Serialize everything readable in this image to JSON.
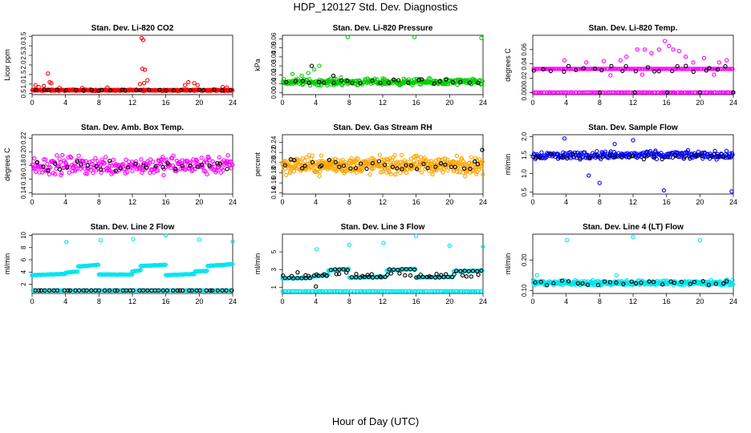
{
  "figure": {
    "title": "HDP_120127  Std. Dev. Diagnostics",
    "xlabel": "Hour of Day (UTC)"
  },
  "chart_data": [
    {
      "type": "scatter",
      "title": "Stan. Dev. Li-820 CO2",
      "ylabel": "Licor ppm",
      "xlim": [
        0,
        24
      ],
      "xticks": [
        "0",
        "4",
        "8",
        "12",
        "16",
        "20",
        "24"
      ],
      "ylim": [
        0.45,
        3.55
      ],
      "yticks": [
        "0.5",
        "1.0",
        "1.5",
        "2.0",
        "2.5",
        "3.0",
        "3.5"
      ],
      "color": "#ff0000",
      "series": [
        {
          "name": "all",
          "color": "#ff0000",
          "base": 0.68,
          "spread": 0.05,
          "n": 300,
          "extra": [
            [
              0.4,
              0.95
            ],
            [
              0.8,
              0.85
            ],
            [
              1.4,
              0.9
            ],
            [
              1.9,
              1.55
            ],
            [
              2.1,
              1.1
            ],
            [
              2.3,
              1.05
            ],
            [
              3.3,
              0.8
            ],
            [
              6.0,
              0.8
            ],
            [
              9.0,
              0.82
            ],
            [
              12.9,
              1.0
            ],
            [
              13.1,
              3.4
            ],
            [
              13.3,
              3.3
            ],
            [
              13.2,
              1.8
            ],
            [
              13.5,
              1.75
            ],
            [
              13.8,
              1.2
            ],
            [
              13.4,
              1.05
            ],
            [
              18.3,
              0.95
            ],
            [
              18.7,
              1.1
            ],
            [
              19.4,
              1.05
            ],
            [
              19.8,
              0.95
            ],
            [
              22.8,
              0.85
            ],
            [
              23.3,
              0.82
            ]
          ]
        },
        {
          "name": "hourly",
          "color": "#000000",
          "base": 0.69,
          "spread": 0.04,
          "n": 26,
          "extra": []
        }
      ]
    },
    {
      "type": "scatter",
      "title": "Stan. Dev. Li-820 Pressure",
      "ylabel": "kPa",
      "xlim": [
        0,
        24
      ],
      "xticks": [
        "0",
        "4",
        "8",
        "12",
        "16",
        "20",
        "24"
      ],
      "ylim": [
        -0.002,
        0.064
      ],
      "yticks": [
        "0.00",
        "0.01",
        "0.02",
        "0.03",
        "0.04",
        "0.05",
        "0.06"
      ],
      "color": "#00cc00",
      "series": [
        {
          "name": "all",
          "color": "#00cc00",
          "base": 0.012,
          "spread": 0.005,
          "n": 300,
          "extra": [
            [
              1.2,
              0.021
            ],
            [
              2.3,
              0.019
            ],
            [
              3.1,
              0.022
            ],
            [
              3.8,
              0.026
            ],
            [
              4.4,
              0.03
            ],
            [
              7.8,
              0.062
            ],
            [
              15.8,
              0.062
            ],
            [
              23.8,
              0.061
            ],
            [
              7.0,
              0.017
            ],
            [
              12.0,
              0.016
            ]
          ]
        },
        {
          "name": "hourly",
          "color": "#000000",
          "base": 0.012,
          "spread": 0.004,
          "n": 26,
          "extra": [
            [
              3.5,
              0.03
            ],
            [
              6.1,
              0.019
            ]
          ]
        }
      ]
    },
    {
      "type": "scatter",
      "title": "Stan. Dev. Li-820 Temp.",
      "ylabel": "degrees C",
      "xlim": [
        0,
        24
      ],
      "xticks": [
        "0",
        "4",
        "8",
        "12",
        "16",
        "20",
        "24"
      ],
      "ylim": [
        -0.003,
        0.08
      ],
      "yticks": [
        "0.000",
        "0.02",
        "0.04",
        "0.06"
      ],
      "color": "#ff00ff",
      "series": [
        {
          "name": "all",
          "color": "#ff00ff",
          "base": 0.033,
          "spread": 0.0,
          "n": 150,
          "extra": [
            [
              10.5,
              0.045
            ],
            [
              11.2,
              0.05
            ],
            [
              12.5,
              0.06
            ],
            [
              13.4,
              0.06
            ],
            [
              14.2,
              0.055
            ],
            [
              15.1,
              0.06
            ],
            [
              15.8,
              0.072
            ],
            [
              16.3,
              0.065
            ],
            [
              16.8,
              0.06
            ],
            [
              17.5,
              0.058
            ],
            [
              18.3,
              0.05
            ],
            [
              19.2,
              0.042
            ],
            [
              20.5,
              0.048
            ],
            [
              22.3,
              0.042
            ],
            [
              23.2,
              0.045
            ],
            [
              3.8,
              0.045
            ],
            [
              6.4,
              0.042
            ],
            [
              8.5,
              0.044
            ],
            [
              9.3,
              0.024
            ],
            [
              13.1,
              0.025
            ],
            [
              21.7,
              0.025
            ]
          ]
        },
        {
          "name": "zero",
          "color": "#ff00ff",
          "base": 0.0,
          "spread": 0.0,
          "n": 120,
          "extra": []
        },
        {
          "name": "hourly",
          "color": "#000000",
          "base": 0.033,
          "spread": 0.008,
          "n": 24,
          "extra": [
            [
              8.0,
              0.0
            ],
            [
              12.2,
              0.0
            ],
            [
              16.1,
              0.0
            ],
            [
              20.0,
              0.0
            ],
            [
              24.0,
              0.0
            ]
          ]
        }
      ]
    },
    {
      "type": "scatter",
      "title": "Stan. Dev. Amb. Box Temp.",
      "ylabel": "degrees C",
      "xlim": [
        0,
        24
      ],
      "xticks": [
        "0",
        "4",
        "8",
        "12",
        "16",
        "20",
        "24"
      ],
      "ylim": [
        0.138,
        0.225
      ],
      "yticks": [
        "0.14",
        "0.16",
        "0.18",
        "0.20",
        "0.22"
      ],
      "color": "#ff00ff",
      "series": [
        {
          "name": "all",
          "color": "#ff00ff",
          "base": 0.18,
          "spread": 0.02,
          "n": 280,
          "extra": []
        },
        {
          "name": "hourly",
          "color": "#000000",
          "base": 0.18,
          "spread": 0.014,
          "n": 30,
          "extra": []
        }
      ]
    },
    {
      "type": "scatter",
      "title": "Stan. Dev. Gas Stream RH",
      "ylabel": "percent",
      "xlim": [
        0,
        24
      ],
      "xticks": [
        "0",
        "4",
        "8",
        "12",
        "16",
        "20",
        "24"
      ],
      "ylim": [
        0.138,
        0.255
      ],
      "yticks": [
        "0.14",
        "0.16",
        "0.18",
        "0.20",
        "0.22",
        "0.24"
      ],
      "color": "#ffa500",
      "series": [
        {
          "name": "all",
          "color": "#ffa500",
          "base": 0.195,
          "spread": 0.025,
          "n": 420,
          "extra": []
        },
        {
          "name": "hourly",
          "color": "#000000",
          "base": 0.195,
          "spread": 0.016,
          "n": 36,
          "extra": [
            [
              23.9,
              0.225
            ]
          ]
        }
      ]
    },
    {
      "type": "scatter",
      "title": "Stan. Dev. Sample Flow",
      "ylabel": "ml/min",
      "xlim": [
        0,
        24
      ],
      "xticks": [
        "0",
        "4",
        "8",
        "12",
        "16",
        "20",
        "24"
      ],
      "ylim": [
        0.45,
        2.05
      ],
      "yticks": [
        "0.5",
        "1.0",
        "1.5",
        "2.0"
      ],
      "color": "#0000ff",
      "series": [
        {
          "name": "all",
          "color": "#0000ff",
          "base": 1.5,
          "spread": 0.15,
          "n": 260,
          "extra": [
            [
              6.7,
              0.95
            ],
            [
              8.0,
              0.75
            ],
            [
              15.7,
              0.55
            ],
            [
              23.8,
              0.52
            ],
            [
              12.0,
              1.9
            ],
            [
              3.8,
              1.95
            ],
            [
              9.8,
              1.8
            ]
          ]
        },
        {
          "name": "hourly",
          "color": "#000000",
          "base": 1.45,
          "spread": 0.1,
          "n": 30,
          "extra": []
        }
      ]
    },
    {
      "type": "scatter",
      "title": "Stan. Dev. Line 2 Flow",
      "ylabel": "ml/min",
      "xlim": [
        0,
        24
      ],
      "xticks": [
        "0",
        "4",
        "8",
        "12",
        "16",
        "20",
        "24"
      ],
      "ylim": [
        0.5,
        10.2
      ],
      "yticks": [
        "2",
        "4",
        "6",
        "8",
        "10"
      ],
      "color": "#00e5ee",
      "steps": [
        [
          0,
          3.5,
          3.7
        ],
        [
          4,
          3.9,
          4.1
        ],
        [
          5.5,
          4.9,
          5.2
        ],
        [
          8,
          3.6,
          3.6
        ],
        [
          12,
          4.1,
          4.3
        ],
        [
          13,
          5.0,
          5.2
        ],
        [
          16,
          3.5,
          3.7
        ],
        [
          19.5,
          4.1,
          4.2
        ],
        [
          21,
          5.0,
          5.3
        ],
        [
          24,
          5.0,
          5.0
        ]
      ],
      "series": [
        {
          "name": "low",
          "color": "#00e5ee",
          "base": 1.0,
          "spread": 0.0,
          "n": 120,
          "extra": [
            [
              4.1,
              8.9
            ],
            [
              8.2,
              9.2
            ],
            [
              12.1,
              9.4
            ],
            [
              16.0,
              10.0
            ],
            [
              20.0,
              9.3
            ],
            [
              24.0,
              9.0
            ]
          ]
        },
        {
          "name": "hourly",
          "color": "#000000",
          "base": 1.0,
          "spread": 0.0,
          "n": 48,
          "extra": []
        }
      ]
    },
    {
      "type": "scatter",
      "title": "Stan. Dev. Line 3 Flow",
      "ylabel": "ml/min",
      "xlim": [
        0,
        24
      ],
      "xticks": [
        "0",
        "4",
        "8",
        "12",
        "16",
        "20",
        "24"
      ],
      "ylim": [
        0.3,
        7.0
      ],
      "yticks": [
        "1",
        "3",
        "5"
      ],
      "color": "#00e5ee",
      "steps": [
        [
          0,
          2.0,
          2.1
        ],
        [
          3.5,
          2.2,
          2.4
        ],
        [
          5.5,
          2.9,
          3.1
        ],
        [
          8,
          2.1,
          2.2
        ],
        [
          12.5,
          2.9,
          3.1
        ],
        [
          16,
          2.1,
          2.2
        ],
        [
          20.5,
          2.8,
          2.9
        ],
        [
          24,
          2.9,
          2.9
        ]
      ],
      "series": [
        {
          "name": "low",
          "color": "#00e5ee",
          "base": 0.55,
          "spread": 0.0,
          "n": 120,
          "extra": [
            [
              4.1,
              5.3
            ],
            [
              8.0,
              5.8
            ],
            [
              12.1,
              6.0
            ],
            [
              16.0,
              6.8
            ],
            [
              20.0,
              5.7
            ],
            [
              24.0,
              5.6
            ]
          ]
        },
        {
          "name": "hourly",
          "color": "#000000",
          "base": 2.4,
          "spread": 0.4,
          "n": 32,
          "extra": [
            [
              4.0,
              1.1
            ]
          ]
        }
      ]
    },
    {
      "type": "scatter",
      "title": "Stan. Dev. Line 4 (LT) Flow",
      "ylabel": "ml/min",
      "xlim": [
        0,
        24
      ],
      "xticks": [
        "0",
        "4",
        "8",
        "12",
        "16",
        "20",
        "24"
      ],
      "ylim": [
        0.09,
        0.285
      ],
      "yticks": [
        "0.10",
        "0.20"
      ],
      "color": "#00e5ee",
      "series": [
        {
          "name": "all",
          "color": "#00e5ee",
          "base": 0.125,
          "spread": 0.012,
          "n": 380,
          "extra": [
            [
              4.1,
              0.265
            ],
            [
              12.0,
              0.275
            ],
            [
              20.0,
              0.265
            ],
            [
              0.5,
              0.15
            ],
            [
              10.0,
              0.15
            ]
          ]
        },
        {
          "name": "hourly",
          "color": "#000000",
          "base": 0.125,
          "spread": 0.01,
          "n": 30,
          "extra": []
        }
      ]
    }
  ]
}
